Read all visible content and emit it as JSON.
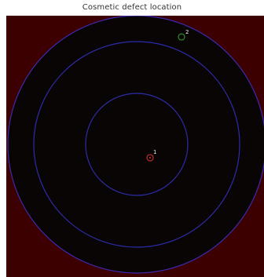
{
  "title": "Cosmetic defect location",
  "colors": {
    "page_background": "#ffffff",
    "plot_background": "#3d0000",
    "disc_fill": "#0a0505",
    "ring_stroke": "#2c2ca8",
    "outer_ring_stroke": "#3a2ab0",
    "defect_1": "#d83030",
    "defect_2": "#2fa02f",
    "label_text": "#e8e8e8"
  },
  "defects": [
    {
      "id": "defect-1",
      "label": "1",
      "color_key": "defect_1"
    },
    {
      "id": "defect-2",
      "label": "2",
      "color_key": "defect_2"
    }
  ]
}
